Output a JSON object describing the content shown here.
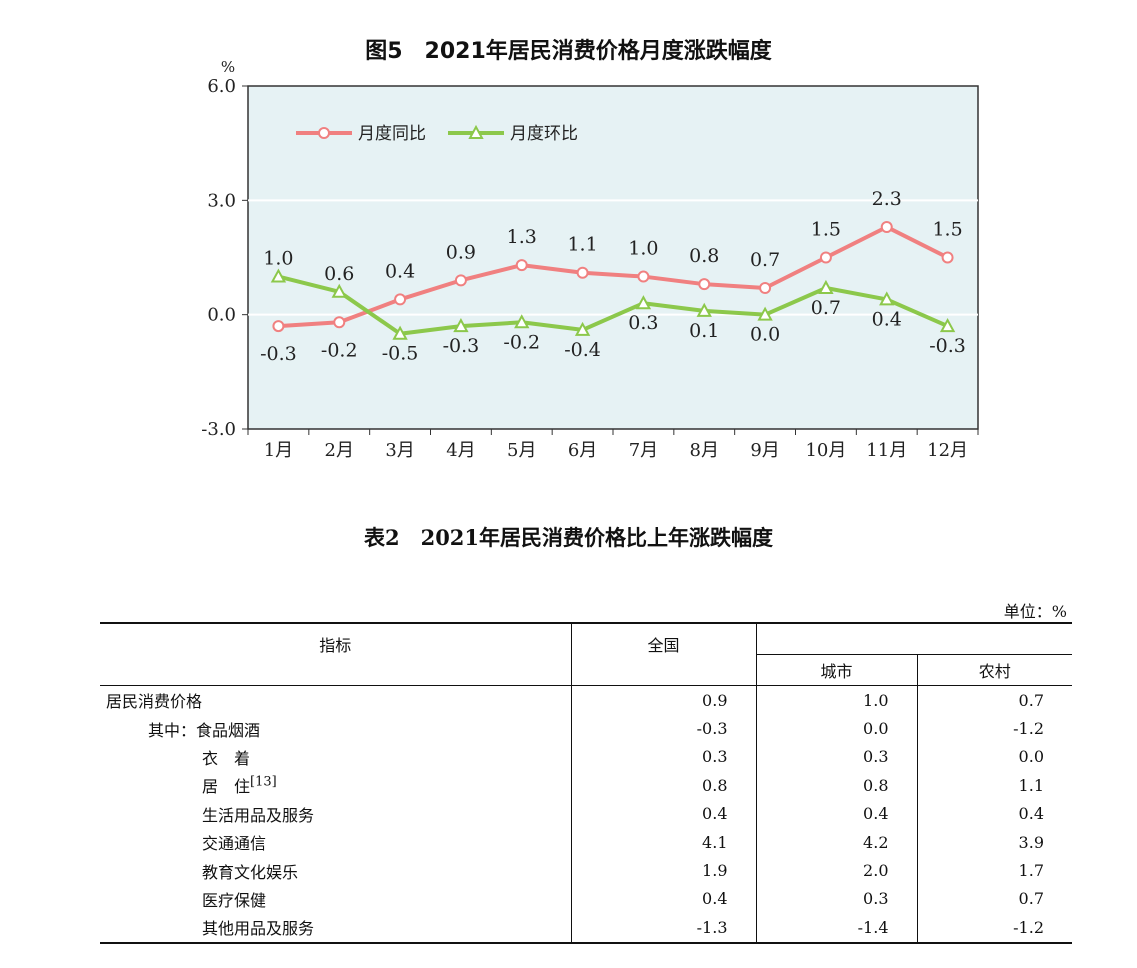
{
  "figure": {
    "title": "图5　2021年居民消费价格月度涨跌幅度"
  },
  "chart_data": {
    "type": "line",
    "title": "图5　2021年居民消费价格月度涨跌幅度",
    "ylabel": "%",
    "xlabel": "",
    "categories": [
      "1月",
      "2月",
      "3月",
      "4月",
      "5月",
      "6月",
      "7月",
      "8月",
      "9月",
      "10月",
      "11月",
      "12月"
    ],
    "ylim": [
      -3.0,
      6.0
    ],
    "yticks": [
      -3.0,
      0.0,
      3.0,
      6.0
    ],
    "ytick_labels": [
      "-3.0",
      "0.0",
      "3.0",
      "6.0"
    ],
    "grid": true,
    "legend_position": "top-left",
    "series": [
      {
        "name": "月度同比",
        "color": "#f08080",
        "marker": "circle",
        "values": [
          -0.3,
          -0.2,
          0.4,
          0.9,
          1.3,
          1.1,
          1.0,
          0.8,
          0.7,
          1.5,
          2.3,
          1.5
        ],
        "labels": [
          "-0.3",
          "-0.2",
          "0.4",
          "0.9",
          "1.3",
          "1.1",
          "1.0",
          "0.8",
          "0.7",
          "1.5",
          "2.3",
          "1.5"
        ]
      },
      {
        "name": "月度环比",
        "color": "#8cc84b",
        "marker": "triangle",
        "values": [
          1.0,
          0.6,
          -0.5,
          -0.3,
          -0.2,
          -0.4,
          0.3,
          0.1,
          0.0,
          0.7,
          0.4,
          -0.3
        ],
        "labels": [
          "1.0",
          "0.6",
          "-0.5",
          "-0.3",
          "-0.2",
          "-0.4",
          "0.3",
          "0.1",
          "0.0",
          "0.7",
          "0.4",
          "-0.3"
        ]
      }
    ]
  },
  "table": {
    "title": "表2　2021年居民消费价格比上年涨跌幅度",
    "unit": "单位：%",
    "headers": {
      "indicator": "指标",
      "national": "全国",
      "urban": "城市",
      "rural": "农村"
    },
    "rows": [
      {
        "label": "居民消费价格",
        "indent": 0,
        "national": "0.9",
        "urban": "1.0",
        "rural": "0.7"
      },
      {
        "label": "其中：食品烟酒",
        "indent": 1,
        "national": "-0.3",
        "urban": "0.0",
        "rural": "-1.2"
      },
      {
        "label": "衣　着",
        "indent": 2,
        "national": "0.3",
        "urban": "0.3",
        "rural": "0.0"
      },
      {
        "label": "居　住",
        "note": "[13]",
        "indent": 2,
        "national": "0.8",
        "urban": "0.8",
        "rural": "1.1"
      },
      {
        "label": "生活用品及服务",
        "indent": 2,
        "national": "0.4",
        "urban": "0.4",
        "rural": "0.4"
      },
      {
        "label": "交通通信",
        "indent": 2,
        "national": "4.1",
        "urban": "4.2",
        "rural": "3.9"
      },
      {
        "label": "教育文化娱乐",
        "indent": 2,
        "national": "1.9",
        "urban": "2.0",
        "rural": "1.7"
      },
      {
        "label": "医疗保健",
        "indent": 2,
        "national": "0.4",
        "urban": "0.3",
        "rural": "0.7"
      },
      {
        "label": "其他用品及服务",
        "indent": 2,
        "national": "-1.3",
        "urban": "-1.4",
        "rural": "-1.2"
      }
    ]
  }
}
